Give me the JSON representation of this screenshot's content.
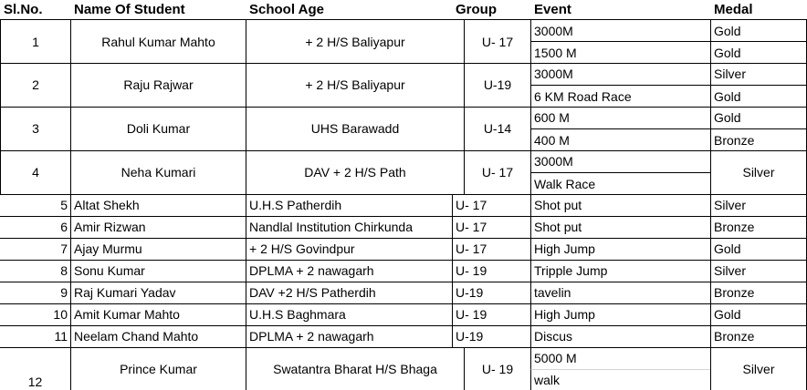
{
  "headers": {
    "slno": "Sl.No.",
    "name": "Name Of Student",
    "school": "School Age",
    "group": "Group",
    "event": "Event",
    "medal": "Medal"
  },
  "merged_rows": [
    {
      "slno": "1",
      "name": "Rahul Kumar Mahto",
      "school": "+ 2 H/S Baliyapur",
      "group": "U- 17",
      "events": [
        "3000M",
        "1500 M"
      ],
      "medals": [
        "Gold",
        "Gold"
      ]
    },
    {
      "slno": "2",
      "name": "Raju Rajwar",
      "school": "+ 2 H/S Baliyapur",
      "group": "U-19",
      "events": [
        "3000M",
        "6 KM Road Race"
      ],
      "medals": [
        "Silver",
        "Gold"
      ]
    },
    {
      "slno": "3",
      "name": "Doli Kumar",
      "school": "UHS Barawadd",
      "group": "U-14",
      "events": [
        "600 M",
        "400 M"
      ],
      "medals": [
        "Gold",
        "Bronze"
      ]
    },
    {
      "slno": "4",
      "name": "Neha Kumari",
      "school": "DAV + 2 H/S Path",
      "group": "U- 17",
      "events": [
        "3000M",
        "Walk Race"
      ],
      "medal": "Silver"
    }
  ],
  "single_rows": [
    {
      "slno": "5",
      "name": "Altat Shekh",
      "school": "U.H.S Patherdih",
      "group": "U- 17",
      "event": "Shot put",
      "medal": "Silver"
    },
    {
      "slno": "6",
      "name": "Amir Rizwan",
      "school": "Nandlal Institution  Chirkunda",
      "group": "U- 17",
      "event": "Shot put",
      "medal": "Bronze"
    },
    {
      "slno": "7",
      "name": "Ajay Murmu",
      "school": "+ 2 H/S  Govindpur",
      "group": "U- 17",
      "event": "High Jump",
      "medal": "Gold"
    },
    {
      "slno": "8",
      "name": "Sonu Kumar",
      "school": "DPLMA + 2 nawagarh",
      "group": "U- 19",
      "event": "Tripple Jump",
      "medal": "Silver"
    },
    {
      "slno": "9",
      "name": "Raj Kumari Yadav",
      "school": "DAV +2 H/S Patherdih",
      "group": "U-19",
      "event": "tavelin",
      "medal": "Bronze"
    },
    {
      "slno": "10",
      "name": "Amit Kumar Mahto",
      "school": "U.H.S Baghmara",
      "group": "U- 19",
      "event": "High Jump",
      "medal": "Gold"
    },
    {
      "slno": "11",
      "name": "Neelam Chand Mahto",
      "school": "DPLMA + 2 nawagarh",
      "group": "U-19",
      "event": "Discus",
      "medal": "Bronze"
    }
  ],
  "last_row": {
    "slno": "12",
    "name": "Prince Kumar",
    "school": "Swatantra Bharat H/S Bhaga",
    "group": "U- 19",
    "events": [
      "5000 M",
      "walk"
    ],
    "medal": "Silver"
  }
}
